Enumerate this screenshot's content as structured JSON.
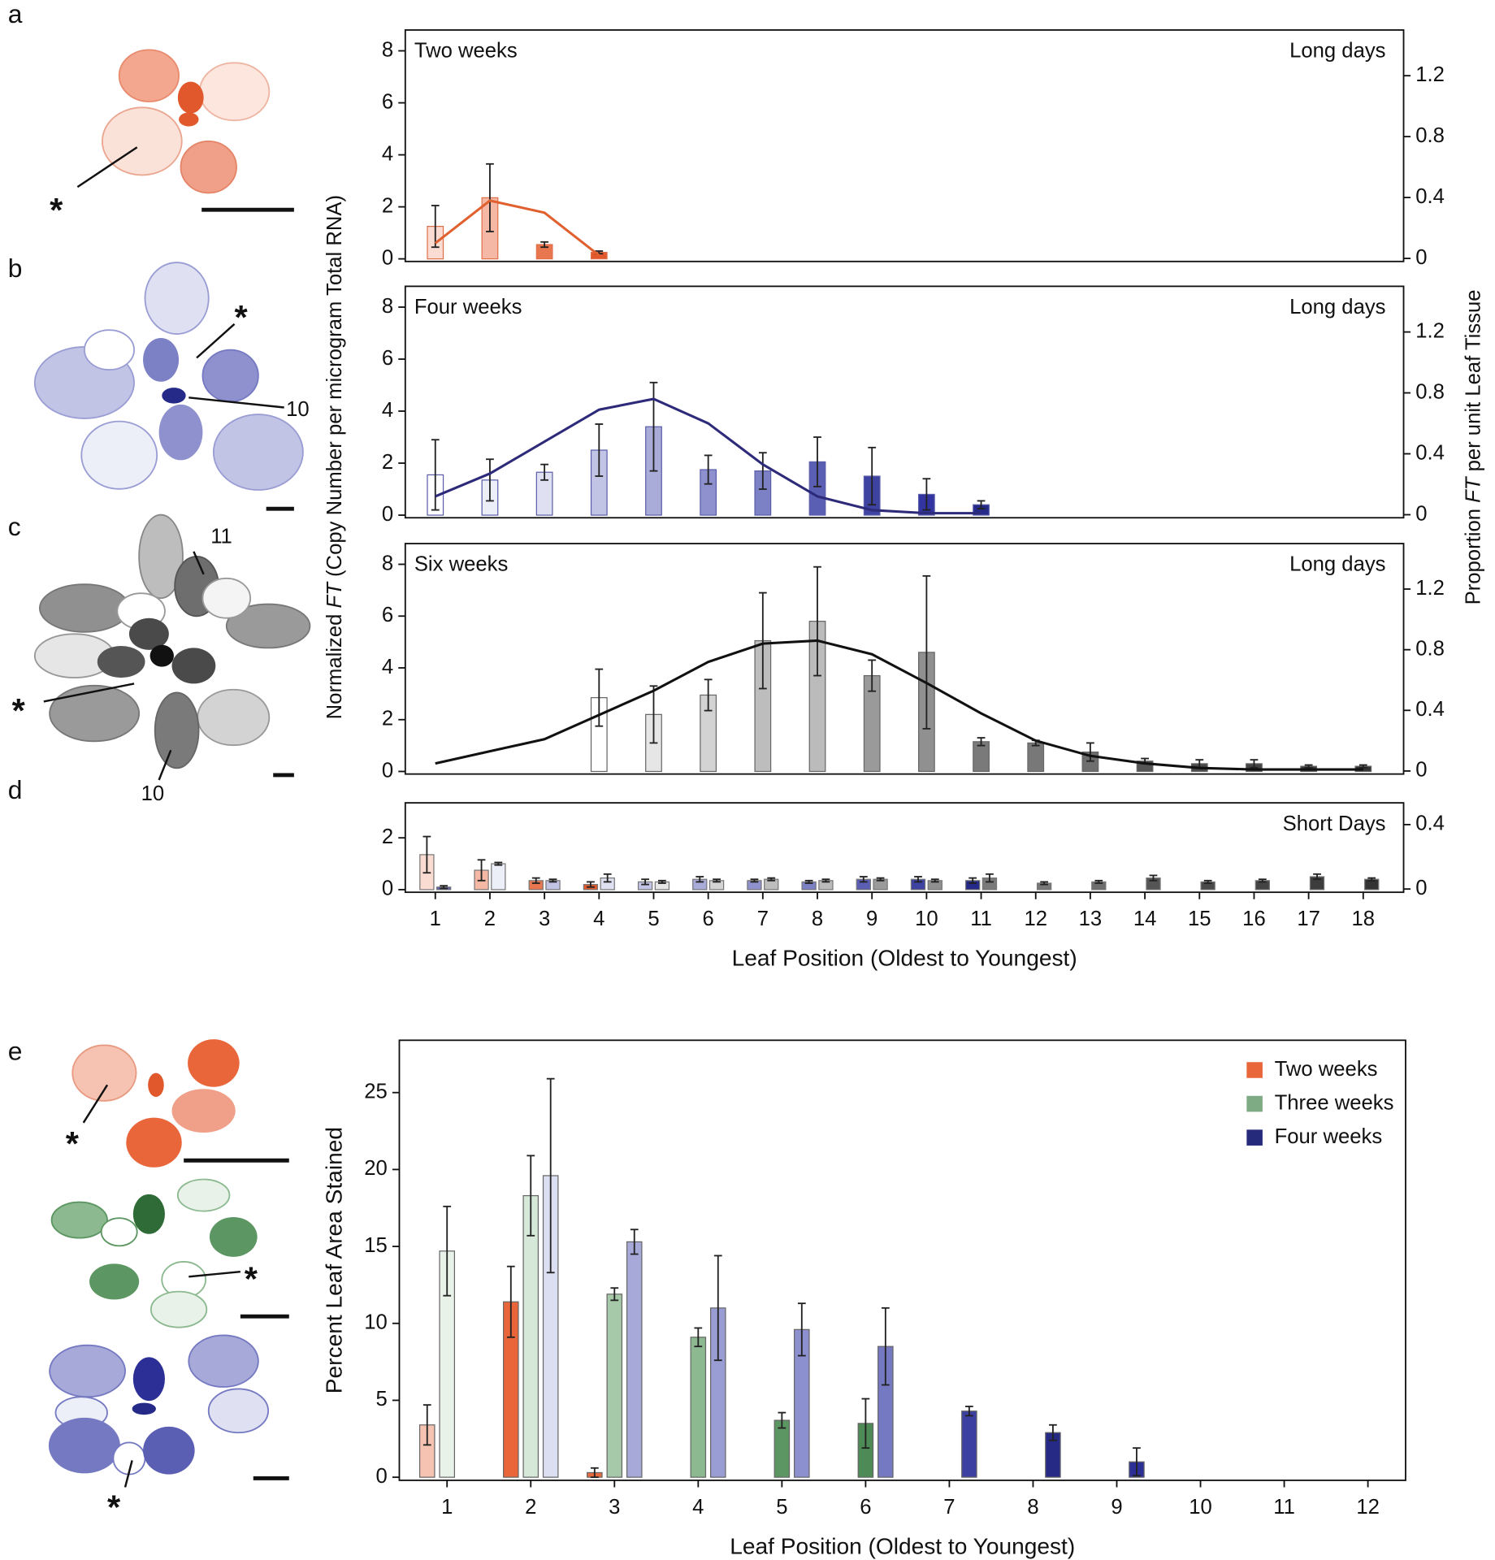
{
  "figure": {
    "panel_labels": [
      "a",
      "b",
      "c",
      "d",
      "e"
    ],
    "illustration_labels": [
      "*",
      "*",
      "10",
      "11",
      "*",
      "10",
      "*",
      "*",
      "*"
    ],
    "ylabel_parts": [
      "Normalized ",
      "FT",
      " (Copy Number per microgram Total RNA)"
    ],
    "y2label_parts": [
      "Proportion ",
      "FT",
      " per unit Leaf Tissue"
    ]
  },
  "chart_data": [
    {
      "type": "bar_line",
      "title": "Two weeks",
      "condition": "Long days",
      "xlim": [
        0.45,
        18.74
      ],
      "ylim": [
        -0.1,
        8.8
      ],
      "yticks": [
        0,
        2,
        4,
        6,
        8
      ],
      "y2lim": [
        -0.02,
        1.5
      ],
      "y2ticks": [
        0,
        0.4,
        0.8,
        1.2
      ],
      "x": [
        1,
        2,
        3,
        4
      ],
      "values": [
        1.25,
        2.35,
        0.55,
        0.25
      ],
      "errors": [
        0.8,
        1.3,
        0.1,
        0.05
      ],
      "colors": [
        "#fadcd2",
        "#f4b8a5",
        "#e8764f",
        "#e0582c"
      ],
      "bar_stroke": "#e0704a",
      "line": {
        "axis": "y2",
        "color": "#e0602f",
        "x": [
          1,
          2,
          3,
          4
        ],
        "values": [
          0.1,
          0.38,
          0.3,
          0.02
        ]
      }
    },
    {
      "type": "bar_line",
      "title": "Four weeks",
      "condition": "Long days",
      "xlim": [
        0.45,
        18.74
      ],
      "ylim": [
        -0.1,
        8.8
      ],
      "yticks": [
        0,
        2,
        4,
        6,
        8
      ],
      "y2lim": [
        -0.02,
        1.5
      ],
      "y2ticks": [
        0,
        0.4,
        0.8,
        1.2
      ],
      "x": [
        1,
        2,
        3,
        4,
        5,
        6,
        7,
        8,
        9,
        10,
        11
      ],
      "values": [
        1.55,
        1.35,
        1.65,
        2.5,
        3.4,
        1.75,
        1.7,
        2.05,
        1.5,
        0.8,
        0.4
      ],
      "errors": [
        1.35,
        0.8,
        0.3,
        1.0,
        1.7,
        0.55,
        0.7,
        0.95,
        1.1,
        0.6,
        0.15
      ],
      "colors": [
        "#ffffff",
        "#eceef8",
        "#dfe1f2",
        "#c2c4e6",
        "#a9acd9",
        "#8e91cd",
        "#7c80c4",
        "#5b5fb3",
        "#3e42a0",
        "#3235a0",
        "#252a88"
      ],
      "bar_stroke": "#5a5eaa",
      "line": {
        "axis": "y2",
        "color": "#2d2a7a",
        "x": [
          1,
          2,
          3,
          4,
          5,
          6,
          7,
          8,
          9,
          10,
          11
        ],
        "values": [
          0.12,
          0.27,
          0.48,
          0.69,
          0.76,
          0.6,
          0.33,
          0.12,
          0.03,
          0.01,
          0.01
        ]
      }
    },
    {
      "type": "bar_line",
      "title": "Six weeks",
      "condition": "Long days",
      "xlim": [
        0.45,
        18.74
      ],
      "ylim": [
        -0.1,
        8.8
      ],
      "yticks": [
        0,
        2,
        4,
        6,
        8
      ],
      "y2lim": [
        -0.02,
        1.5
      ],
      "y2ticks": [
        0,
        0.4,
        0.8,
        1.2
      ],
      "x": [
        4,
        5,
        6,
        7,
        8,
        9,
        10,
        11,
        12,
        13,
        14,
        15,
        16,
        17,
        18
      ],
      "values": [
        2.85,
        2.2,
        2.95,
        5.05,
        5.8,
        3.7,
        4.6,
        1.15,
        1.1,
        0.75,
        0.4,
        0.3,
        0.3,
        0.2,
        0.2
      ],
      "errors": [
        1.1,
        1.1,
        0.6,
        1.85,
        2.1,
        0.6,
        2.95,
        0.15,
        0.1,
        0.35,
        0.1,
        0.15,
        0.15,
        0.05,
        0.05
      ],
      "colors": [
        "#ffffff",
        "#e6e6e6",
        "#d3d3d3",
        "#bdbdbd",
        "#bbbbbb",
        "#9a9a9a",
        "#909090",
        "#7a7a7a",
        "#787878",
        "#6e6e6e",
        "#555555",
        "#4a4a4a",
        "#444444",
        "#3d3d3d",
        "#333333"
      ],
      "bar_stroke": "#666666",
      "line": {
        "axis": "y2",
        "color": "#111111",
        "x": [
          1,
          2,
          3,
          4,
          5,
          6,
          7,
          8,
          9,
          10,
          11,
          12,
          13,
          14,
          15,
          16,
          17,
          18
        ],
        "values": [
          0.05,
          0.13,
          0.21,
          0.37,
          0.53,
          0.72,
          0.84,
          0.86,
          0.77,
          0.58,
          0.38,
          0.2,
          0.1,
          0.05,
          0.02,
          0.01,
          0.01,
          0.01
        ]
      }
    },
    {
      "type": "grouped_bar",
      "condition": "Short Days",
      "xlabel": "Leaf Position (Oldest to Youngest)",
      "xlim": [
        0.45,
        18.74
      ],
      "xticks": [
        1,
        2,
        3,
        4,
        5,
        6,
        7,
        8,
        9,
        10,
        11,
        12,
        13,
        14,
        15,
        16,
        17,
        18
      ],
      "ylim": [
        -0.1,
        3.35
      ],
      "yticks": [
        0,
        2
      ],
      "y2lim": [
        -0.02,
        0.535
      ],
      "y2ticks": [
        0,
        0.4
      ],
      "bar_stroke": "#777777",
      "series": [
        {
          "x": [
            1,
            2,
            3,
            4,
            5,
            6,
            7,
            8,
            9,
            10,
            11
          ],
          "values": [
            1.35,
            0.75,
            0.35,
            0.2,
            0.3,
            0.4,
            0.35,
            0.3,
            0.4,
            0.4,
            0.35
          ],
          "errors": [
            0.7,
            0.4,
            0.1,
            0.1,
            0.1,
            0.1,
            0.05,
            0.05,
            0.1,
            0.1,
            0.1
          ],
          "colors": [
            "#fadcd2",
            "#f4b8a5",
            "#e8764f",
            "#e0582c",
            "#c2c4e6",
            "#a9acd9",
            "#8e91cd",
            "#7c80c4",
            "#5b5fb3",
            "#3e42a0",
            "#252a88"
          ]
        },
        {
          "x": [
            1,
            2,
            3,
            4,
            5,
            6,
            7,
            8,
            9,
            10,
            11,
            12,
            13,
            14,
            15,
            16,
            17,
            18
          ],
          "values": [
            0.1,
            1.0,
            0.35,
            0.45,
            0.3,
            0.35,
            0.4,
            0.35,
            0.4,
            0.35,
            0.45,
            0.25,
            0.3,
            0.45,
            0.3,
            0.35,
            0.5,
            0.4
          ],
          "errors": [
            0.05,
            0.05,
            0.05,
            0.15,
            0.05,
            0.05,
            0.05,
            0.05,
            0.05,
            0.05,
            0.15,
            0.05,
            0.05,
            0.1,
            0.05,
            0.05,
            0.1,
            0.05
          ],
          "colors": [
            "#5b5fb3",
            "#eceef8",
            "#c2c4e6",
            "#dfe1f2",
            "#e6e6e6",
            "#d3d3d3",
            "#bdbdbd",
            "#bbbbbb",
            "#9a9a9a",
            "#909090",
            "#7a7a7a",
            "#787878",
            "#6e6e6e",
            "#555555",
            "#4a4a4a",
            "#444444",
            "#3d3d3d",
            "#333333"
          ]
        }
      ]
    },
    {
      "type": "grouped_bar",
      "ylabel": "Percent Leaf Area Stained",
      "xlabel": "Leaf Position (Oldest to Youngest)",
      "xlim": [
        0.43,
        12.45
      ],
      "xticks": [
        1,
        2,
        3,
        4,
        5,
        6,
        7,
        8,
        9,
        10,
        11,
        12
      ],
      "ylim": [
        -0.2,
        28.4
      ],
      "yticks": [
        0,
        5,
        10,
        15,
        20,
        25
      ],
      "legend": "upper right",
      "bar_stroke": "#666666",
      "series": [
        {
          "name": "Two weeks",
          "color": "#e8663a",
          "x": [
            1,
            2,
            3
          ],
          "values": [
            3.4,
            11.4,
            0.3
          ],
          "errors": [
            1.3,
            2.3,
            0.3
          ],
          "colors": [
            "#f6c3b2",
            "#e8663a",
            "#e66a3f"
          ]
        },
        {
          "name": "Three weeks",
          "color": "#7fab84",
          "x": [
            1,
            2,
            3,
            4,
            5,
            6
          ],
          "values": [
            14.7,
            18.3,
            11.9,
            9.1,
            3.7,
            3.5
          ],
          "errors": [
            2.9,
            2.6,
            0.4,
            0.6,
            0.5,
            1.6
          ],
          "colors": [
            "#e8f2e9",
            "#d6e8d8",
            "#a6c9aa",
            "#8cb990",
            "#5c9662",
            "#4e8a55"
          ]
        },
        {
          "name": "Four weeks",
          "color": "#262a7a",
          "x": [
            2,
            3,
            4,
            5,
            6,
            7,
            8,
            9
          ],
          "values": [
            19.6,
            15.3,
            11.0,
            9.6,
            8.5,
            4.3,
            2.9,
            1.0
          ],
          "errors": [
            6.3,
            0.8,
            3.4,
            1.7,
            2.5,
            0.3,
            0.5,
            0.9
          ],
          "colors": [
            "#dcdff1",
            "#a7aad9",
            "#9a9dd4",
            "#8d90ce",
            "#7579c2",
            "#3c40a0",
            "#262a85",
            "#2c2f96"
          ]
        }
      ]
    }
  ]
}
